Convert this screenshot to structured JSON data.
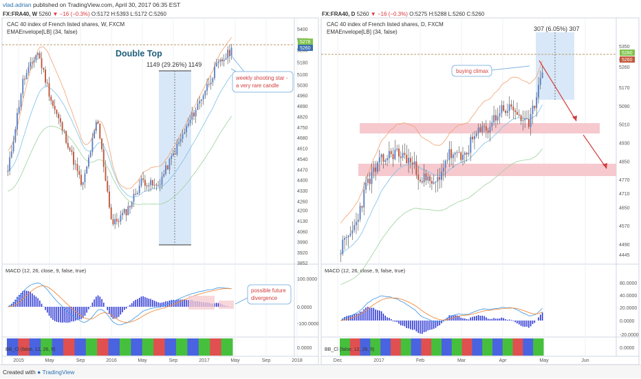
{
  "publish_line": {
    "author": "vlad.adrian",
    "text": " published on TradingView.com, April 30, 2017 06:35 EST"
  },
  "footer": {
    "created_with": "Created with",
    "brand": "TradingView"
  },
  "colors": {
    "up": "#5f83c4",
    "down": "#c3563a",
    "fill": "#d9e8f8",
    "zone": "#f6c9cf",
    "annotation": "#d33d3d",
    "ema1": "#f0a070",
    "ema2": "#7bbfe6",
    "ema3": "#9bd09b",
    "macd": "#4a9de6",
    "signal": "#ef8a3c",
    "hist": "#2530d0"
  },
  "chart_data": [
    {
      "type": "candlestick",
      "panel": "left",
      "header": {
        "symbol": "FX:FRA40, W",
        "price": "5260",
        "change": "▼ −16 (−0.3%)",
        "o": "O:5172",
        "h": "H:5393",
        "l": "L:5172",
        "c": "C:5260"
      },
      "title": "CAC 40 index of French listed shares, W, FXCM",
      "indicator": "EMAEnvelope[LB] (34, false)",
      "y_ticks": [
        "5400",
        "5330",
        "5260",
        "5180",
        "5100",
        "5030",
        "4960",
        "4890",
        "4820",
        "4750",
        "4680",
        "4610",
        "4540",
        "4470",
        "4400",
        "4330",
        "4260",
        "4200",
        "4130",
        "4060",
        "3990",
        "3920",
        "3852"
      ],
      "y_range": [
        3852,
        5400
      ],
      "x_ticks": [
        "2015",
        "May",
        "Sep",
        "2016",
        "May",
        "Sep",
        "2017",
        "May",
        "Sep",
        "2018"
      ],
      "price_tags": [
        "5278",
        "5260"
      ],
      "annotations": {
        "double_top": "Double Top",
        "measure": "1149 (29.26%) 1149",
        "callout": "weekly shooting star - a very rare candle"
      },
      "macd_label": "MACD (12, 26, close, 9, false, true)",
      "macd_ticks": [
        "100.0000",
        "0.0000",
        "-100.0000"
      ],
      "macd_callout": "possible future divergence",
      "strip_label": "BB_Cl (false, 12, 26, 9)",
      "strip_tick": "0.0000",
      "strip_colors": [
        "#4a63e0",
        "#e05050",
        "#4a63e0",
        "#46c03c",
        "#4a63e0",
        "#e05050",
        "#4a63e0",
        "#46c03c",
        "#e05050",
        "#4a63e0",
        "#46c03c",
        "#4a63e0",
        "#46c03c",
        "#e05050",
        "#4a63e0",
        "#46c03c",
        "#4a63e0",
        "#46c03c",
        "#e05050",
        "#46c03c"
      ]
    },
    {
      "type": "candlestick",
      "panel": "right",
      "header": {
        "symbol": "FX:FRA40, D",
        "price": "5260",
        "change": "▼ −16 (−0.3%)",
        "o": "O:5275",
        "h": "H:5288",
        "l": "L:5260",
        "c": "C:5260"
      },
      "title": "CAC 40 index of French listed shares, D, FXCM",
      "indicator": "EMAEnvelope[LB] (34, false)",
      "y_ticks": [
        "5350",
        "5290",
        "5260",
        "5170",
        "5090",
        "5010",
        "4930",
        "4850",
        "4770",
        "4710",
        "4650",
        "4570",
        "4490",
        "4445"
      ],
      "y_range": [
        4445,
        5400
      ],
      "x_ticks": [
        "Dec",
        "2017",
        "Feb",
        "Mar",
        "Apr",
        "May",
        "Jun"
      ],
      "price_tags": [
        "5280",
        "5260"
      ],
      "annotations": {
        "measure": "307 (6.05%) 307",
        "callout": "buying climax"
      },
      "macd_label": "MACD (12, 26, close, 9, false, true)",
      "macd_ticks": [
        "80.0000",
        "40.0000",
        "20.0000",
        "0.0000",
        "-20.0000"
      ],
      "strip_label": "BB_Cl (false, 12, 26, 9)",
      "strip_tick": "0.0000",
      "strip_colors": [
        "#46c03c",
        "#e05050",
        "#4a63e0",
        "#46c03c",
        "#4a63e0",
        "#e05050",
        "#46c03c",
        "#4a63e0",
        "#e05050",
        "#46c03c",
        "#4a63e0",
        "#46c03c",
        "#e05050",
        "#4a63e0",
        "#46c03c",
        "#4a63e0",
        "#46c03c",
        "#e05050",
        "#4a63e0",
        "#46c03c"
      ]
    }
  ]
}
